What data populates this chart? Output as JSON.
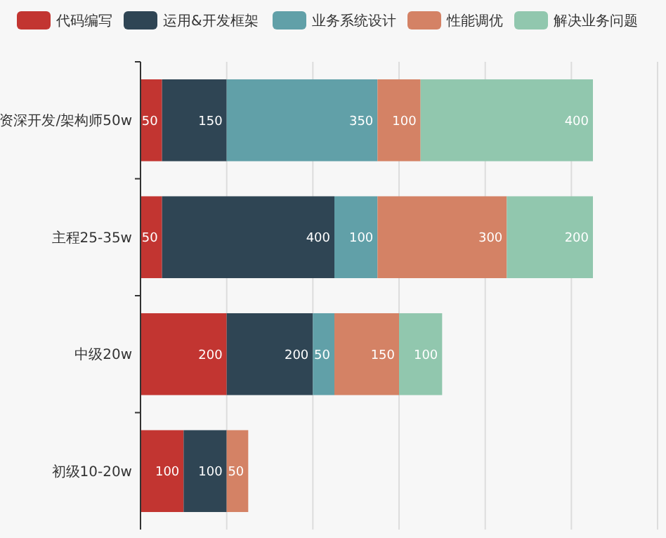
{
  "chart_data": {
    "type": "bar",
    "orientation": "horizontal",
    "stacked": true,
    "data_labels": true,
    "grid": "x",
    "legend": "top",
    "tick_labels": "y",
    "categories": [
      "资深开发/架构师50w",
      "主程25-35w",
      "中级20w",
      "初级10-20w"
    ],
    "xlim": [
      0,
      1200
    ],
    "xticks": [
      {
        "value": 0,
        "label": null
      },
      {
        "value": 200,
        "label": null
      },
      {
        "value": 400,
        "label": null
      },
      {
        "value": 600,
        "label": null
      },
      {
        "value": 800,
        "label": null
      },
      {
        "value": 1000,
        "label": null
      },
      {
        "value": 1200,
        "label": null
      }
    ],
    "series": [
      {
        "name": "代码编写",
        "color": "#c23531",
        "values": [
          50,
          50,
          200,
          100
        ]
      },
      {
        "name": "运用&开发框架",
        "color": "#2f4554",
        "values": [
          150,
          400,
          200,
          100
        ]
      },
      {
        "name": "业务系统设计",
        "color": "#61a0a8",
        "values": [
          350,
          100,
          50,
          null
        ]
      },
      {
        "name": "性能调优",
        "color": "#d48265",
        "values": [
          100,
          300,
          150,
          50
        ]
      },
      {
        "name": "解决业务问题",
        "color": "#91c7ae",
        "values": [
          400,
          200,
          100,
          null
        ]
      }
    ]
  }
}
